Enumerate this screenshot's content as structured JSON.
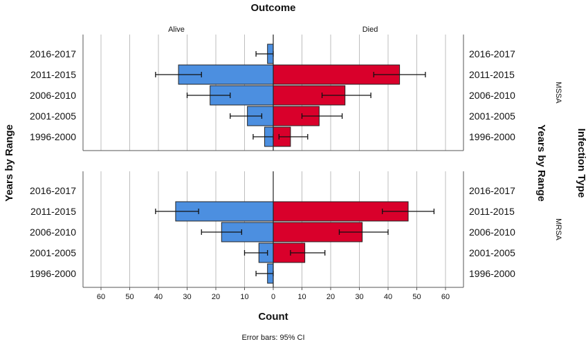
{
  "chart_data": {
    "type": "bar",
    "title": "Outcome",
    "columns": [
      "Alive",
      "Died"
    ],
    "xlabel": "Count",
    "ylabel_left": "Years by Range",
    "ylabel_right": "Years by Range",
    "facet_label": "Infection Type",
    "footnote": "Error bars: 95% CI",
    "categories": [
      "2016-2017",
      "2011-2015",
      "2006-2010",
      "2001-2005",
      "1996-2000"
    ],
    "x_ticks": [
      60,
      50,
      40,
      30,
      20,
      10,
      0,
      10,
      20,
      30,
      40,
      50,
      60
    ],
    "xlim": [
      -65,
      65
    ],
    "colors": {
      "Alive": "#4c8fe0",
      "Died": "#d9002b"
    },
    "panels": [
      {
        "name": "MSSA",
        "series": [
          {
            "name": "Alive",
            "values": [
              2,
              33,
              22,
              9,
              3
            ],
            "ci_low": [
              0,
              25,
              15,
              4,
              0
            ],
            "ci_high": [
              6,
              41,
              30,
              15,
              7
            ]
          },
          {
            "name": "Died",
            "values": [
              0,
              44,
              25,
              16,
              6
            ],
            "ci_low": [
              0,
              35,
              17,
              10,
              2
            ],
            "ci_high": [
              0,
              53,
              34,
              24,
              12
            ]
          }
        ]
      },
      {
        "name": "MRSA",
        "series": [
          {
            "name": "Alive",
            "values": [
              0,
              34,
              18,
              5,
              2
            ],
            "ci_low": [
              0,
              26,
              11,
              2,
              0
            ],
            "ci_high": [
              0,
              41,
              25,
              10,
              6
            ]
          },
          {
            "name": "Died",
            "values": [
              0,
              47,
              31,
              11,
              0
            ],
            "ci_low": [
              0,
              38,
              23,
              6,
              0
            ],
            "ci_high": [
              0,
              56,
              40,
              18,
              0
            ]
          }
        ]
      }
    ]
  }
}
